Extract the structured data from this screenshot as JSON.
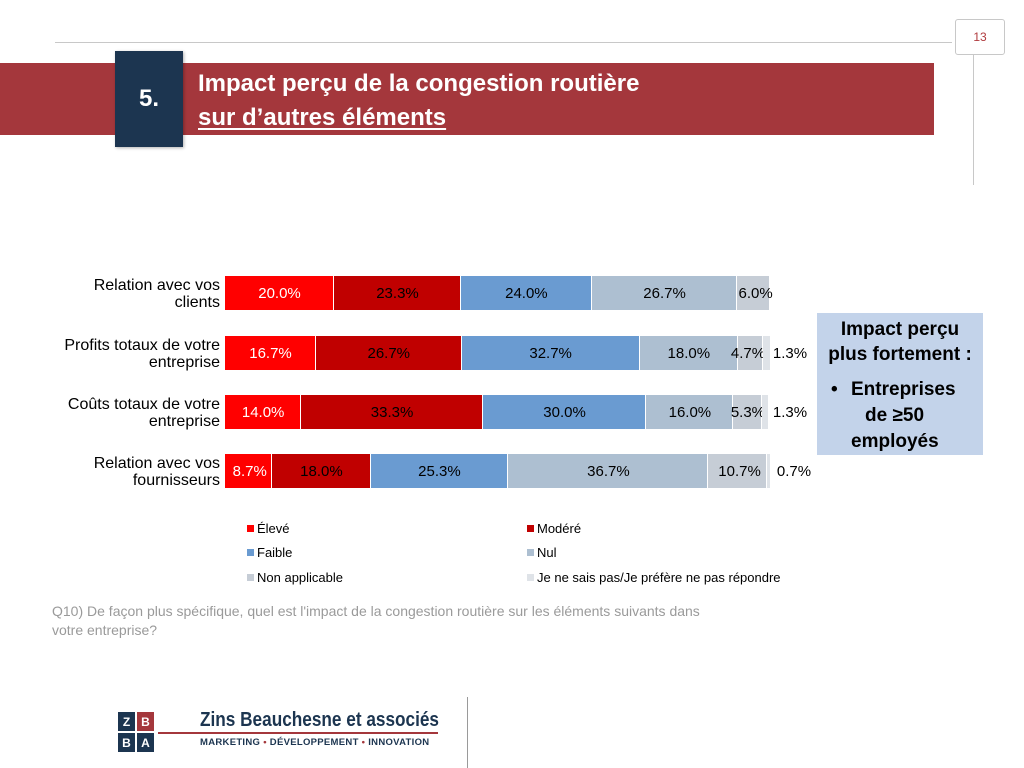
{
  "page_number": "13",
  "section_number": "5.",
  "title_line1": "Impact perçu de la congestion routière",
  "title_line2": "sur d’autres éléments",
  "chart_data": {
    "type": "bar",
    "orientation": "horizontal",
    "stacked": "100%",
    "categories": [
      "Relation avec vos clients",
      "Profits totaux de votre entreprise",
      "Coûts totaux de votre entreprise",
      "Relation avec vos fournisseurs"
    ],
    "category_lines": [
      [
        "Relation avec vos",
        "clients"
      ],
      [
        "Profits totaux de votre",
        "entreprise"
      ],
      [
        "Coûts totaux de votre",
        "entreprise"
      ],
      [
        "Relation avec vos",
        "fournisseurs"
      ]
    ],
    "series": [
      {
        "name": "Élevé",
        "color": "#ff0000",
        "values": [
          20.0,
          16.7,
          14.0,
          8.7
        ],
        "labels": [
          "20.0%",
          "16.7%",
          "14.0%",
          "8.7%"
        ]
      },
      {
        "name": "Modéré",
        "color": "#c00000",
        "values": [
          23.3,
          26.7,
          33.3,
          18.0
        ],
        "labels": [
          "23.3%",
          "26.7%",
          "33.3%",
          "18.0%"
        ]
      },
      {
        "name": "Faible",
        "color": "#6a9bd1",
        "values": [
          24.0,
          32.7,
          30.0,
          25.3
        ],
        "labels": [
          "24.0%",
          "32.7%",
          "30.0%",
          "25.3%"
        ]
      },
      {
        "name": "Nul",
        "color": "#adbfd1",
        "values": [
          26.7,
          18.0,
          16.0,
          36.7
        ],
        "labels": [
          "26.7%",
          "18.0%",
          "16.0%",
          "36.7%"
        ]
      },
      {
        "name": "Non applicable",
        "color": "#c6cdd6",
        "values": [
          6.0,
          4.7,
          5.3,
          10.7
        ],
        "labels": [
          "6.0%",
          "4.7%",
          "5.3%",
          "10.7%"
        ]
      },
      {
        "name": "Je ne sais pas/Je préfère ne pas répondre",
        "color": "#dfe3e8",
        "values": [
          0.0,
          1.3,
          1.3,
          0.7
        ],
        "labels": [
          "",
          "1.3%",
          "1.3%",
          "0.7%"
        ]
      }
    ],
    "xlim": [
      0,
      100
    ],
    "legend_position": "bottom"
  },
  "callout": {
    "heading_line1": "Impact perçu",
    "heading_line2": "plus fortement :",
    "bullet_line1": "Entreprises",
    "bullet_line2": "de ≥50",
    "bullet_line3": "employés"
  },
  "question_line1": "Q10) De façon plus spécifique, quel est l'impact de la congestion routière sur les éléments suivants dans",
  "question_line2": "votre entreprise?",
  "logo": {
    "letters": [
      "Z",
      "B",
      "B",
      "A"
    ],
    "company": "Zins Beauchesne et associés",
    "tag1": "MARKETING",
    "tag2": "DÉVELOPPEMENT",
    "tag3": "INNOVATION",
    "sep": "•",
    "colors": [
      "#1c3550",
      "#a4373c",
      "#1c3550",
      "#1c3550"
    ]
  }
}
